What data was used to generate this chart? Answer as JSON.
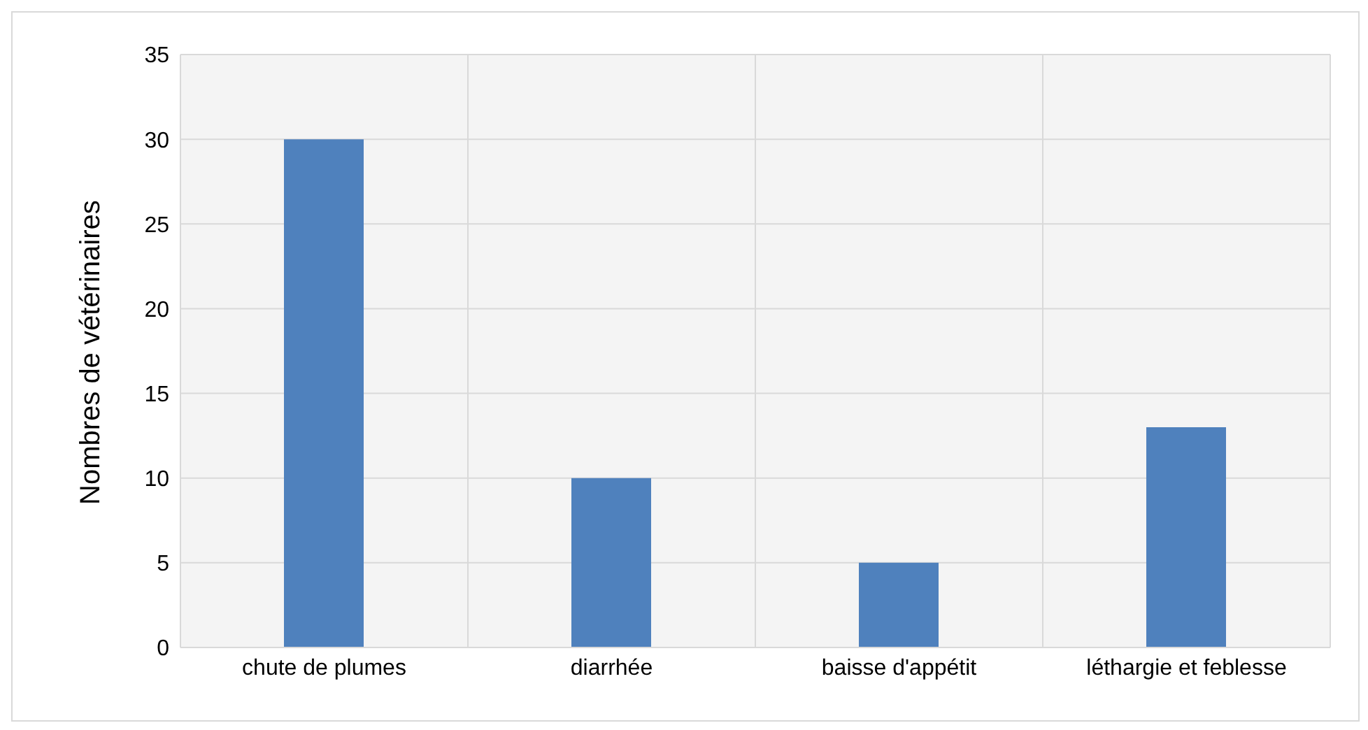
{
  "chart_data": {
    "type": "bar",
    "ylabel": "Nombres de vétérinaires",
    "categories": [
      "chute de plumes",
      "diarrhée",
      "baisse d'appétit",
      "léthargie et feblesse"
    ],
    "values": [
      30,
      10,
      5,
      13
    ],
    "color": "#4f81bd",
    "ylim": [
      0,
      35
    ],
    "yticks": [
      0,
      5,
      10,
      15,
      20,
      25,
      30,
      35
    ],
    "grid": true
  }
}
